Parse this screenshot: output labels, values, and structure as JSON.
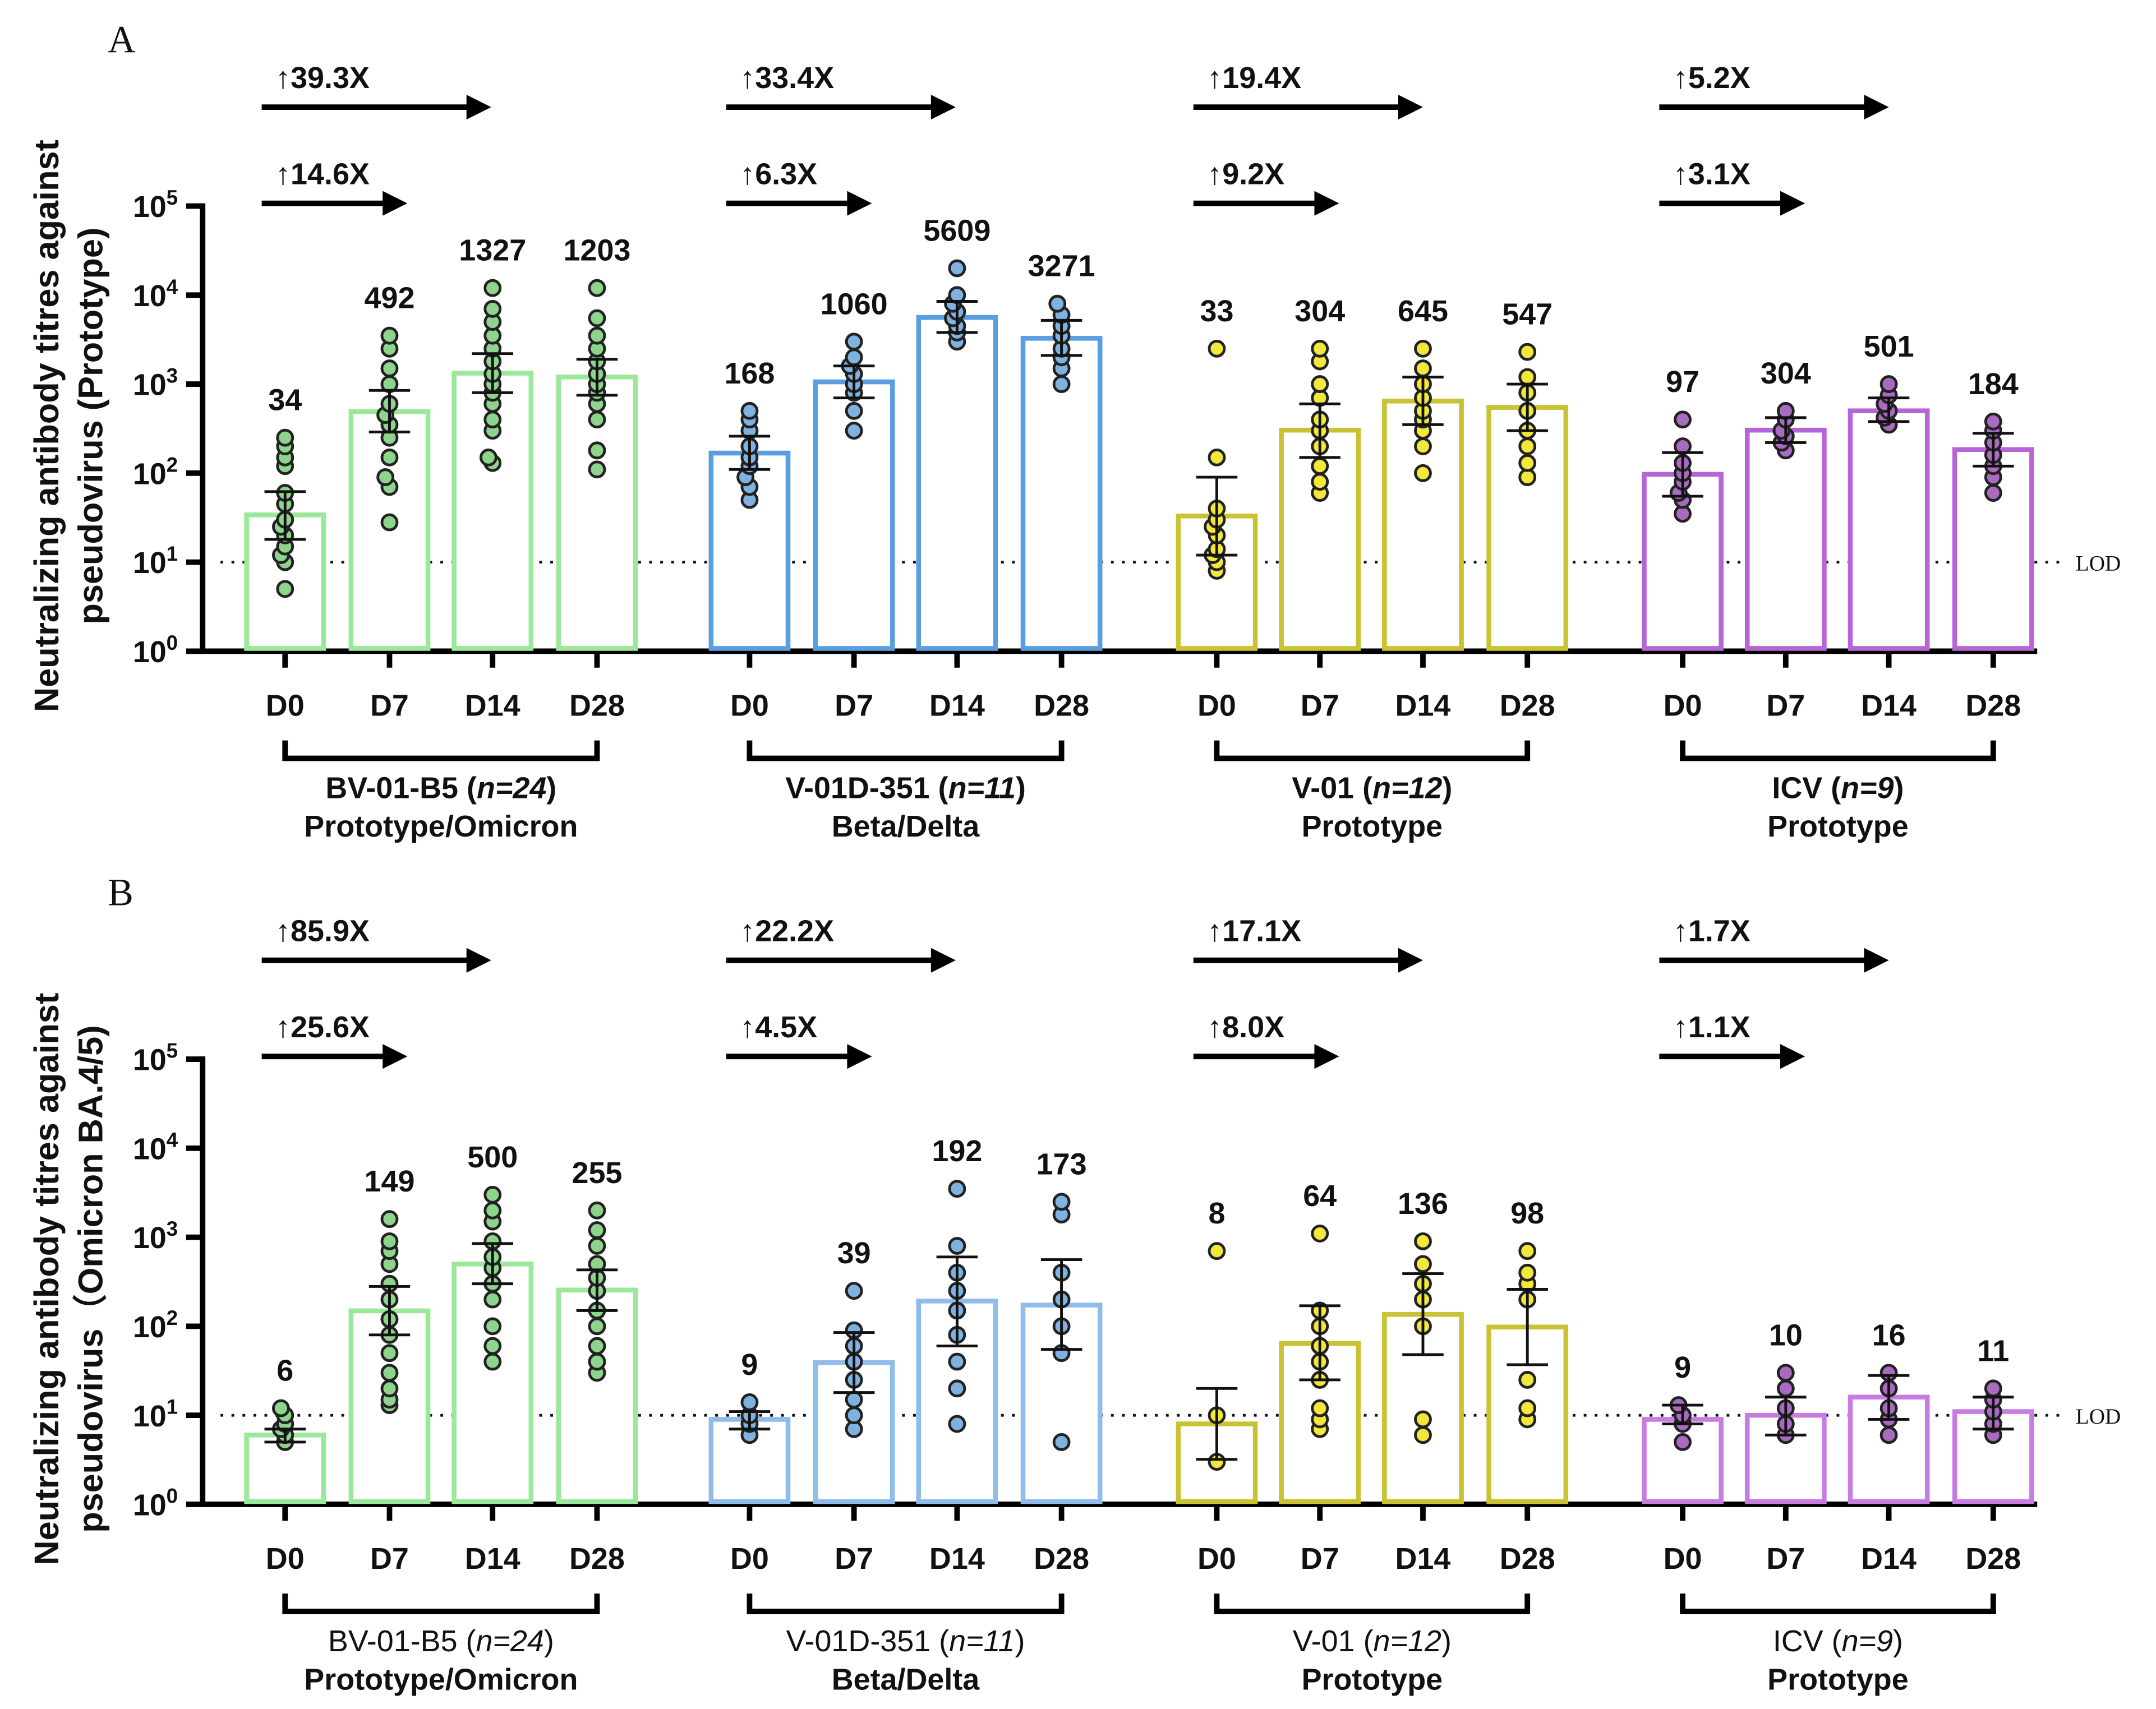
{
  "chart_data": [
    {
      "type": "bar",
      "panel_label": "A",
      "ylabel_lines": [
        "Neutralizing antibody titres against",
        "pseudovirus (Prototype)"
      ],
      "yscale": "log",
      "ylim": [
        1,
        100000
      ],
      "yticks": [
        {
          "base": "10",
          "exp": "0"
        },
        {
          "base": "10",
          "exp": "1"
        },
        {
          "base": "10",
          "exp": "2"
        },
        {
          "base": "10",
          "exp": "3"
        },
        {
          "base": "10",
          "exp": "4"
        },
        {
          "base": "10",
          "exp": "5"
        }
      ],
      "lod": {
        "value": 10,
        "label": "LOD"
      },
      "categories": [
        "D0",
        "D7",
        "D14",
        "D28"
      ],
      "groups": [
        {
          "name": "BV-01-B5",
          "n": "n=24",
          "subtitle": "Prototype/Omicron",
          "color": "#9ce89a",
          "dot_color": "#8fd48c",
          "fold_long": "↑39.3X",
          "fold_short": "↑14.6X",
          "bars": [
            {
              "label": "34",
              "value": 34,
              "ci": [
                18,
                62
              ],
              "points": [
                5,
                10,
                12,
                15,
                20,
                25,
                30,
                45,
                60,
                120,
                150,
                200,
                250
              ]
            },
            {
              "label": "492",
              "value": 492,
              "ci": [
                290,
                850
              ],
              "points": [
                28,
                70,
                90,
                150,
                250,
                350,
                450,
                600,
                1000,
                1500,
                2500,
                3500
              ]
            },
            {
              "label": "1327",
              "value": 1327,
              "ci": [
                800,
                2200
              ],
              "points": [
                130,
                150,
                300,
                400,
                600,
                800,
                1000,
                1300,
                1800,
                2500,
                3500,
                5000,
                7000,
                12000
              ]
            },
            {
              "label": "1203",
              "value": 1203,
              "ci": [
                750,
                1900
              ],
              "points": [
                110,
                180,
                400,
                600,
                800,
                1000,
                1300,
                1800,
                2500,
                3500,
                5500,
                12000
              ]
            }
          ]
        },
        {
          "name": "V-01D-351",
          "n": "n=11",
          "subtitle": "Beta/Delta",
          "color": "#5b9ee0",
          "dot_color": "#7fb2e0",
          "fold_long": "↑33.4X",
          "fold_short": "↑6.3X",
          "bars": [
            {
              "label": "168",
              "value": 168,
              "ci": [
                110,
                260
              ],
              "points": [
                50,
                70,
                90,
                120,
                150,
                200,
                300,
                400,
                500
              ]
            },
            {
              "label": "1060",
              "value": 1060,
              "ci": [
                700,
                1600
              ],
              "points": [
                300,
                500,
                800,
                1000,
                1300,
                1600,
                2000,
                3000
              ]
            },
            {
              "label": "5609",
              "value": 5609,
              "ci": [
                3800,
                8500
              ],
              "points": [
                3000,
                3800,
                4500,
                5500,
                6500,
                8000,
                10000,
                20000
              ]
            },
            {
              "label": "3271",
              "value": 3271,
              "ci": [
                2100,
                5200
              ],
              "points": [
                1000,
                1500,
                2000,
                2500,
                3500,
                4500,
                6000,
                8000
              ]
            }
          ]
        },
        {
          "name": "V-01",
          "n": "n=12",
          "subtitle": "Prototype",
          "color": "#c9c232",
          "dot_color": "#f2e83c",
          "fold_long": "↑19.4X",
          "fold_short": "↑9.2X",
          "bars": [
            {
              "label": "33",
              "value": 33,
              "ci": [
                12,
                90
              ],
              "points": [
                8,
                10,
                12,
                14,
                20,
                25,
                30,
                40,
                150,
                2500
              ]
            },
            {
              "label": "304",
              "value": 304,
              "ci": [
                150,
                600
              ],
              "points": [
                60,
                80,
                120,
                200,
                300,
                400,
                700,
                1000,
                1800,
                2500
              ]
            },
            {
              "label": "645",
              "value": 645,
              "ci": [
                350,
                1200
              ],
              "points": [
                100,
                200,
                300,
                400,
                500,
                700,
                1000,
                1500,
                2500
              ]
            },
            {
              "label": "547",
              "value": 547,
              "ci": [
                300,
                1000
              ],
              "points": [
                90,
                130,
                200,
                300,
                500,
                800,
                1200,
                2300
              ]
            }
          ]
        },
        {
          "name": "ICV",
          "n": "n=9",
          "subtitle": "Prototype",
          "color": "#b565d6",
          "dot_color": "#a86bc0",
          "fold_long": "↑5.2X",
          "fold_short": "↑3.1X",
          "bars": [
            {
              "label": "97",
              "value": 97,
              "ci": [
                55,
                170
              ],
              "points": [
                35,
                50,
                60,
                80,
                100,
                130,
                200,
                400
              ]
            },
            {
              "label": "304",
              "value": 304,
              "ci": [
                220,
                420
              ],
              "points": [
                180,
                220,
                260,
                300,
                400,
                500
              ]
            },
            {
              "label": "501",
              "value": 501,
              "ci": [
                380,
                700
              ],
              "points": [
                350,
                420,
                500,
                600,
                750,
                1000
              ]
            },
            {
              "label": "184",
              "value": 184,
              "ci": [
                120,
                280
              ],
              "points": [
                60,
                90,
                120,
                160,
                220,
                300,
                380
              ]
            }
          ]
        }
      ]
    },
    {
      "type": "bar",
      "panel_label": "B",
      "ylabel_lines": [
        "Neutralizing antibody titres against",
        "pseudovirus（Omicron BA.4/5)"
      ],
      "yscale": "log",
      "ylim": [
        1,
        100000
      ],
      "yticks": [
        {
          "base": "10",
          "exp": "0"
        },
        {
          "base": "10",
          "exp": "1"
        },
        {
          "base": "10",
          "exp": "2"
        },
        {
          "base": "10",
          "exp": "3"
        },
        {
          "base": "10",
          "exp": "4"
        },
        {
          "base": "10",
          "exp": "5"
        }
      ],
      "lod": {
        "value": 10,
        "label": "LOD"
      },
      "categories": [
        "D0",
        "D7",
        "D14",
        "D28"
      ],
      "groups": [
        {
          "name": "BV-01-B5",
          "n": "n=24",
          "subtitle": "Prototype/Omicron",
          "color": "#9ce89a",
          "dot_color": "#8fd48c",
          "fold_long": "↑85.9X",
          "fold_short": "↑25.6X",
          "bars": [
            {
              "label": "6",
              "value": 6,
              "ci": [
                5,
                7
              ],
              "points": [
                5,
                6,
                7,
                8,
                10,
                12
              ]
            },
            {
              "label": "149",
              "value": 149,
              "ci": [
                80,
                280
              ],
              "points": [
                13,
                15,
                20,
                30,
                50,
                80,
                120,
                200,
                300,
                500,
                700,
                900,
                1600
              ]
            },
            {
              "label": "500",
              "value": 500,
              "ci": [
                300,
                850
              ],
              "points": [
                40,
                60,
                100,
                200,
                300,
                450,
                600,
                900,
                1500,
                2000,
                3000
              ]
            },
            {
              "label": "255",
              "value": 255,
              "ci": [
                150,
                430
              ],
              "points": [
                30,
                40,
                60,
                100,
                150,
                250,
                350,
                500,
                800,
                1200,
                2000
              ]
            }
          ]
        },
        {
          "name": "V-01D-351",
          "n": "n=11",
          "subtitle": "Beta/Delta",
          "color": "#8fbde8",
          "dot_color": "#7fb2e0",
          "fold_long": "↑22.2X",
          "fold_short": "↑4.5X",
          "bars": [
            {
              "label": "9",
              "value": 9,
              "ci": [
                7,
                11
              ],
              "points": [
                6,
                8,
                10,
                14
              ]
            },
            {
              "label": "39",
              "value": 39,
              "ci": [
                18,
                85
              ],
              "points": [
                7,
                10,
                15,
                25,
                40,
                60,
                90,
                250
              ]
            },
            {
              "label": "192",
              "value": 192,
              "ci": [
                60,
                600
              ],
              "points": [
                8,
                20,
                40,
                80,
                150,
                250,
                400,
                800,
                3500
              ]
            },
            {
              "label": "173",
              "value": 173,
              "ci": [
                55,
                560
              ],
              "points": [
                5,
                50,
                100,
                200,
                400,
                1800,
                2500
              ]
            }
          ]
        },
        {
          "name": "V-01",
          "n": "n=12",
          "subtitle": "Prototype",
          "color": "#c9c232",
          "dot_color": "#f2e83c",
          "fold_long": "↑17.1X",
          "fold_short": "↑8.0X",
          "bars": [
            {
              "label": "8",
              "value": 8,
              "ci": [
                3.2,
                20
              ],
              "points": [
                3,
                10,
                700
              ]
            },
            {
              "label": "64",
              "value": 64,
              "ci": [
                25,
                170
              ],
              "points": [
                7,
                9,
                12,
                25,
                40,
                60,
                100,
                150,
                1100
              ]
            },
            {
              "label": "136",
              "value": 136,
              "ci": [
                48,
                390
              ],
              "points": [
                6,
                9,
                100,
                200,
                300,
                500,
                900
              ]
            },
            {
              "label": "98",
              "value": 98,
              "ci": [
                37,
                260
              ],
              "points": [
                9,
                12,
                25,
                200,
                300,
                400,
                700
              ]
            }
          ]
        },
        {
          "name": "ICV",
          "n": "n=9",
          "subtitle": "Prototype",
          "color": "#c57ee0",
          "dot_color": "#a86bc0",
          "fold_long": "↑1.7X",
          "fold_short": "↑1.1X",
          "bars": [
            {
              "label": "9",
              "value": 9,
              "ci": [
                8,
                13
              ],
              "points": [
                5,
                8,
                10,
                13
              ]
            },
            {
              "label": "10",
              "value": 10,
              "ci": [
                6,
                16
              ],
              "points": [
                6,
                8,
                12,
                20,
                30
              ]
            },
            {
              "label": "16",
              "value": 16,
              "ci": [
                9,
                28
              ],
              "points": [
                6,
                9,
                12,
                20,
                30
              ]
            },
            {
              "label": "11",
              "value": 11,
              "ci": [
                7,
                16
              ],
              "points": [
                6,
                8,
                11,
                15,
                20
              ]
            }
          ]
        }
      ]
    }
  ]
}
